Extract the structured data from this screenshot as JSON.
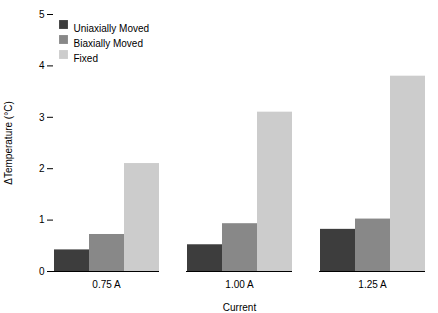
{
  "chart_data": {
    "type": "bar",
    "categories": [
      "0.75 A",
      "1.00 A",
      "1.25 A"
    ],
    "series": [
      {
        "name": "Uniaxially Moved",
        "color": "#3d3d3d",
        "values": [
          0.42,
          0.52,
          0.82
        ]
      },
      {
        "name": "Biaxially Moved",
        "color": "#888888",
        "values": [
          0.72,
          0.93,
          1.02
        ]
      },
      {
        "name": "Fixed",
        "color": "#cccccc",
        "values": [
          2.1,
          3.1,
          3.8
        ]
      }
    ],
    "xlabel": "Current",
    "ylabel": "ΔTemperature (°C)",
    "ylim": [
      0,
      5
    ],
    "yticks": [
      0,
      1,
      2,
      3,
      4,
      5
    ],
    "grid": false,
    "legend": "upper left"
  }
}
